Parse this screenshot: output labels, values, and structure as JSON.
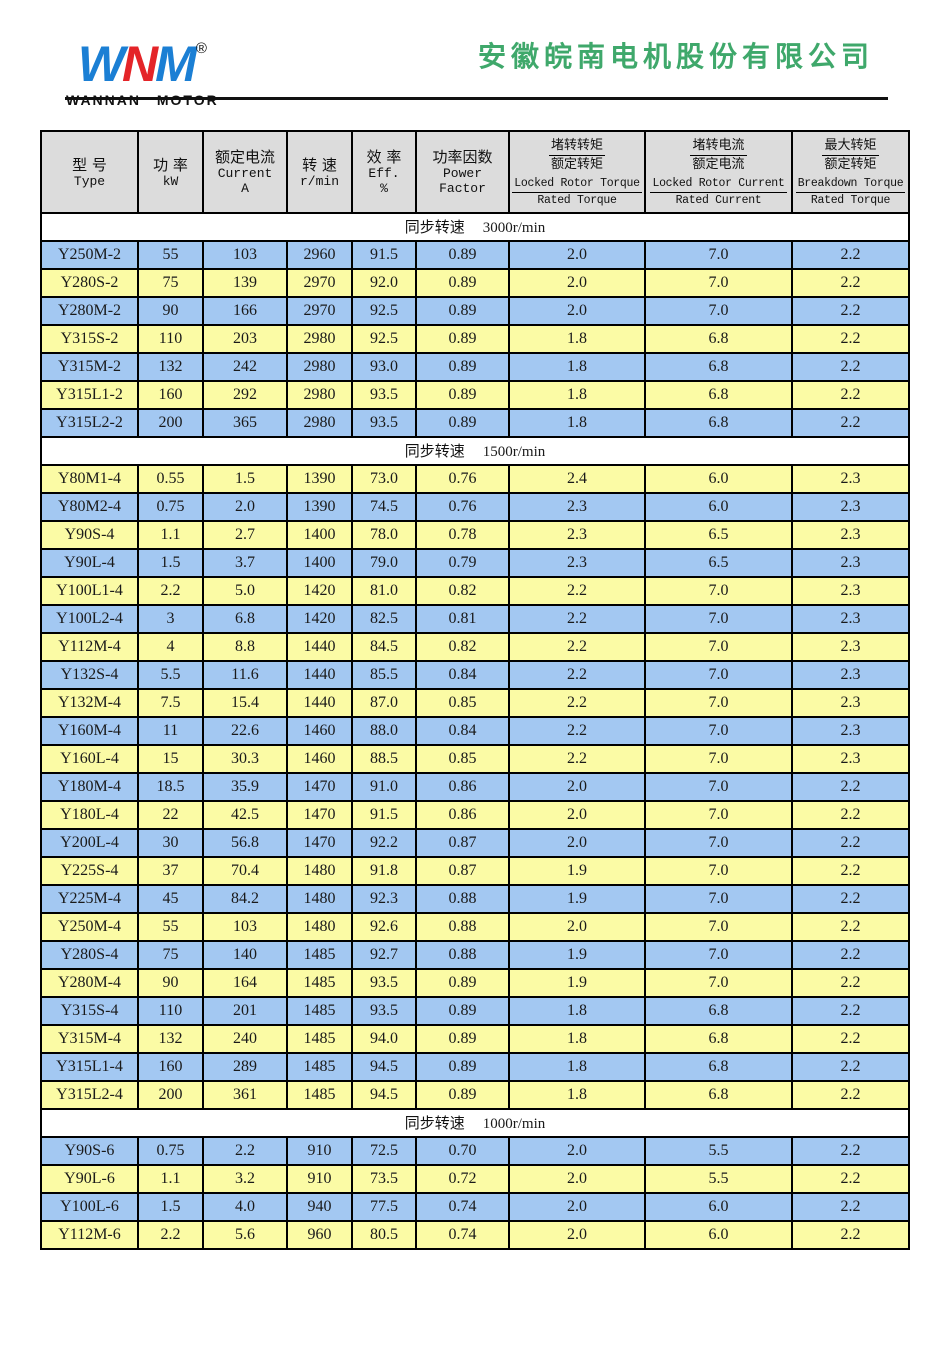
{
  "header": {
    "logo": {
      "letters": [
        "W",
        "N",
        "M"
      ],
      "registered": "®",
      "subtitle": "WANNAN MOTOR"
    },
    "company_name": "安徽皖南电机股份有限公司"
  },
  "table": {
    "columns": [
      {
        "lines": [
          "型 号",
          "Type"
        ]
      },
      {
        "lines": [
          "功 率",
          "kW"
        ]
      },
      {
        "lines": [
          "额定电流",
          "Current",
          "A"
        ]
      },
      {
        "lines": [
          "转 速",
          "r/min"
        ]
      },
      {
        "lines": [
          "效 率",
          "Eff.",
          "%"
        ]
      },
      {
        "lines": [
          "功率因数",
          "Power",
          "Factor"
        ]
      },
      {
        "zh_num": "堵转转矩",
        "zh_den": "额定转矩",
        "en_num": "Locked Rotor Torque",
        "en_den": "Rated Torque"
      },
      {
        "zh_num": "堵转电流",
        "zh_den": "额定电流",
        "en_num": "Locked Rotor Current",
        "en_den": "Rated Current"
      },
      {
        "zh_num": "最大转矩",
        "zh_den": "额定转矩",
        "en_num": "Breakdown Torque",
        "en_den": "Rated Torque"
      }
    ],
    "sections": [
      {
        "label": "同步转速",
        "speed": "3000r/min",
        "rows": [
          [
            "Y250M-2",
            "55",
            "103",
            "2960",
            "91.5",
            "0.89",
            "2.0",
            "7.0",
            "2.2"
          ],
          [
            "Y280S-2",
            "75",
            "139",
            "2970",
            "92.0",
            "0.89",
            "2.0",
            "7.0",
            "2.2"
          ],
          [
            "Y280M-2",
            "90",
            "166",
            "2970",
            "92.5",
            "0.89",
            "2.0",
            "7.0",
            "2.2"
          ],
          [
            "Y315S-2",
            "110",
            "203",
            "2980",
            "92.5",
            "0.89",
            "1.8",
            "6.8",
            "2.2"
          ],
          [
            "Y315M-2",
            "132",
            "242",
            "2980",
            "93.0",
            "0.89",
            "1.8",
            "6.8",
            "2.2"
          ],
          [
            "Y315L1-2",
            "160",
            "292",
            "2980",
            "93.5",
            "0.89",
            "1.8",
            "6.8",
            "2.2"
          ],
          [
            "Y315L2-2",
            "200",
            "365",
            "2980",
            "93.5",
            "0.89",
            "1.8",
            "6.8",
            "2.2"
          ]
        ]
      },
      {
        "label": "同步转速",
        "speed": "1500r/min",
        "rows": [
          [
            "Y80M1-4",
            "0.55",
            "1.5",
            "1390",
            "73.0",
            "0.76",
            "2.4",
            "6.0",
            "2.3"
          ],
          [
            "Y80M2-4",
            "0.75",
            "2.0",
            "1390",
            "74.5",
            "0.76",
            "2.3",
            "6.0",
            "2.3"
          ],
          [
            "Y90S-4",
            "1.1",
            "2.7",
            "1400",
            "78.0",
            "0.78",
            "2.3",
            "6.5",
            "2.3"
          ],
          [
            "Y90L-4",
            "1.5",
            "3.7",
            "1400",
            "79.0",
            "0.79",
            "2.3",
            "6.5",
            "2.3"
          ],
          [
            "Y100L1-4",
            "2.2",
            "5.0",
            "1420",
            "81.0",
            "0.82",
            "2.2",
            "7.0",
            "2.3"
          ],
          [
            "Y100L2-4",
            "3",
            "6.8",
            "1420",
            "82.5",
            "0.81",
            "2.2",
            "7.0",
            "2.3"
          ],
          [
            "Y112M-4",
            "4",
            "8.8",
            "1440",
            "84.5",
            "0.82",
            "2.2",
            "7.0",
            "2.3"
          ],
          [
            "Y132S-4",
            "5.5",
            "11.6",
            "1440",
            "85.5",
            "0.84",
            "2.2",
            "7.0",
            "2.3"
          ],
          [
            "Y132M-4",
            "7.5",
            "15.4",
            "1440",
            "87.0",
            "0.85",
            "2.2",
            "7.0",
            "2.3"
          ],
          [
            "Y160M-4",
            "11",
            "22.6",
            "1460",
            "88.0",
            "0.84",
            "2.2",
            "7.0",
            "2.3"
          ],
          [
            "Y160L-4",
            "15",
            "30.3",
            "1460",
            "88.5",
            "0.85",
            "2.2",
            "7.0",
            "2.3"
          ],
          [
            "Y180M-4",
            "18.5",
            "35.9",
            "1470",
            "91.0",
            "0.86",
            "2.0",
            "7.0",
            "2.2"
          ],
          [
            "Y180L-4",
            "22",
            "42.5",
            "1470",
            "91.5",
            "0.86",
            "2.0",
            "7.0",
            "2.2"
          ],
          [
            "Y200L-4",
            "30",
            "56.8",
            "1470",
            "92.2",
            "0.87",
            "2.0",
            "7.0",
            "2.2"
          ],
          [
            "Y225S-4",
            "37",
            "70.4",
            "1480",
            "91.8",
            "0.87",
            "1.9",
            "7.0",
            "2.2"
          ],
          [
            "Y225M-4",
            "45",
            "84.2",
            "1480",
            "92.3",
            "0.88",
            "1.9",
            "7.0",
            "2.2"
          ],
          [
            "Y250M-4",
            "55",
            "103",
            "1480",
            "92.6",
            "0.88",
            "2.0",
            "7.0",
            "2.2"
          ],
          [
            "Y280S-4",
            "75",
            "140",
            "1485",
            "92.7",
            "0.88",
            "1.9",
            "7.0",
            "2.2"
          ],
          [
            "Y280M-4",
            "90",
            "164",
            "1485",
            "93.5",
            "0.89",
            "1.9",
            "7.0",
            "2.2"
          ],
          [
            "Y315S-4",
            "110",
            "201",
            "1485",
            "93.5",
            "0.89",
            "1.8",
            "6.8",
            "2.2"
          ],
          [
            "Y315M-4",
            "132",
            "240",
            "1485",
            "94.0",
            "0.89",
            "1.8",
            "6.8",
            "2.2"
          ],
          [
            "Y315L1-4",
            "160",
            "289",
            "1485",
            "94.5",
            "0.89",
            "1.8",
            "6.8",
            "2.2"
          ],
          [
            "Y315L2-4",
            "200",
            "361",
            "1485",
            "94.5",
            "0.89",
            "1.8",
            "6.8",
            "2.2"
          ]
        ]
      },
      {
        "label": "同步转速",
        "speed": "1000r/min",
        "rows": [
          [
            "Y90S-6",
            "0.75",
            "2.2",
            "910",
            "72.5",
            "0.70",
            "2.0",
            "5.5",
            "2.2"
          ],
          [
            "Y90L-6",
            "1.1",
            "3.2",
            "910",
            "73.5",
            "0.72",
            "2.0",
            "5.5",
            "2.2"
          ],
          [
            "Y100L-6",
            "1.5",
            "4.0",
            "940",
            "77.5",
            "0.74",
            "2.0",
            "6.0",
            "2.2"
          ],
          [
            "Y112M-6",
            "2.2",
            "5.6",
            "960",
            "80.5",
            "0.74",
            "2.0",
            "6.0",
            "2.2"
          ]
        ]
      }
    ]
  },
  "colors": {
    "row_blue": "#A3C8F2",
    "row_yellow": "#FBFBA5",
    "header_bg": "#DCDCDC",
    "table_border": "#000000",
    "company_green": "#3FA86B",
    "logo_blue": "#1B7FD4",
    "logo_red": "#E42428",
    "text": "#1A1A1A"
  }
}
